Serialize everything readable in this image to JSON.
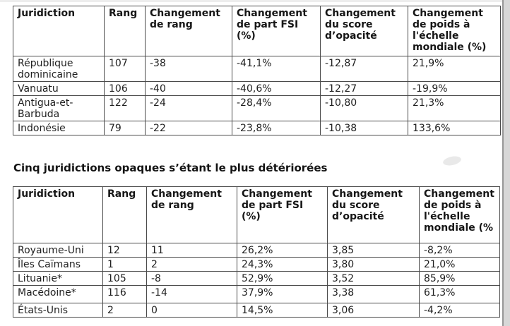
{
  "colors": {
    "decrease_blue": "#6fa5d2",
    "increase_red": "#c0504d",
    "text_dark": "#1c1c1c",
    "table_border": "#4a4a4a"
  },
  "section_heading": "Cinq juridictions opaques s’étant le plus détériorées",
  "tables": [
    {
      "name": "cinq-juridictions-ameliorees",
      "headers": [
        "Juridiction",
        "Rang",
        "Changement de rang",
        "Changement de part FSI (%)",
        "Changement du score d’opacité",
        "Changement de poids à l'échelle mondiale (%)"
      ],
      "rows": [
        {
          "cells": [
            "République dominicaine",
            "107",
            "-38",
            "-41,1%",
            "-12,87",
            "21,9%"
          ],
          "styles": [
            "k",
            "k",
            "b",
            "b",
            "b",
            "r"
          ]
        },
        {
          "cells": [
            "Vanuatu",
            "106",
            "-40",
            "-40,6%",
            "-12,27",
            "-19,9%"
          ],
          "styles": [
            "k",
            "k",
            "b",
            "b",
            "b",
            "b"
          ]
        },
        {
          "cells": [
            "Antigua-et-Barbuda",
            "122",
            "-24",
            "-28,4%",
            "-10,80",
            "21,3%"
          ],
          "styles": [
            "k",
            "k",
            "b",
            "b",
            "b",
            "r"
          ]
        },
        {
          "cells": [
            "Indonésie",
            "79",
            "-22",
            "-23,8%",
            "-10,38",
            "133,6%"
          ],
          "styles": [
            "k",
            "k",
            "b",
            "b",
            "b",
            "r"
          ]
        }
      ]
    },
    {
      "name": "cinq-juridictions-deteriorees",
      "headers": [
        "Juridiction",
        "Rang",
        "Changement de rang",
        "Changement de part FSI (%)",
        "Changement du score d’opacité",
        "Changement de poids à l'échelle mondiale (%"
      ],
      "rows": [
        {
          "cells": [
            "Royaume-Uni",
            "12",
            "11",
            "26,2%",
            "3,85",
            "-8,2%"
          ],
          "styles": [
            "k",
            "k",
            "r",
            "r",
            "r",
            "b"
          ]
        },
        {
          "cells": [
            "Îles Caïmans",
            "1",
            "2",
            "24,3%",
            "3,80",
            "21,0%"
          ],
          "styles": [
            "k",
            "k",
            "r",
            "r",
            "r",
            "r"
          ]
        },
        {
          "cells": [
            "Lituanie*",
            "105",
            "-8",
            "52,9%",
            "3,52",
            "85,9%"
          ],
          "styles": [
            "k",
            "k",
            "b",
            "r",
            "r",
            "r"
          ]
        },
        {
          "cells": [
            "Macédoine*",
            "116",
            "-14",
            "37,9%",
            "3,38",
            "61,3%"
          ],
          "styles": [
            "k",
            "k",
            "b",
            "r",
            "r",
            "r"
          ]
        },
        {
          "cells": [
            "États-Unis",
            "2",
            "0",
            "14,5%",
            "3,06",
            "-4,2%"
          ],
          "styles": [
            "k",
            "k",
            "k",
            "r",
            "r",
            "b"
          ]
        }
      ]
    }
  ]
}
